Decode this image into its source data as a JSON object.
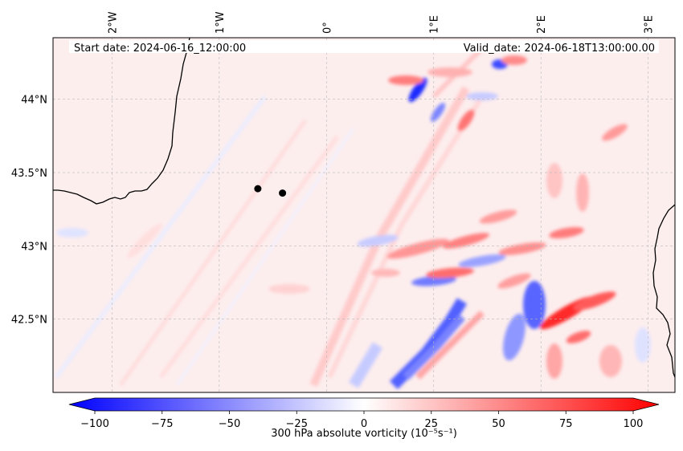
{
  "header": {
    "start_date": "Start date: 2024-06-16_12:00:00",
    "valid_date": "Valid_date: 2024-06-18T13:00:00.00"
  },
  "map": {
    "lon_ticks": [
      {
        "value": -2,
        "label": "2°W"
      },
      {
        "value": -1,
        "label": "1°W"
      },
      {
        "value": 0,
        "label": "0°"
      },
      {
        "value": 1,
        "label": "1°E"
      },
      {
        "value": 2,
        "label": "2°E"
      },
      {
        "value": 3,
        "label": "3°E"
      }
    ],
    "lat_ticks": [
      {
        "value": 44.0,
        "label": "44°N"
      },
      {
        "value": 43.5,
        "label": "43.5°N"
      },
      {
        "value": 43.0,
        "label": "43°N"
      },
      {
        "value": 42.5,
        "label": "42.5°N"
      }
    ],
    "lon_range": [
      -2.55,
      3.25
    ],
    "lat_range": [
      42.0,
      44.42
    ],
    "points": [
      {
        "lon": -0.64,
        "lat": 43.39
      },
      {
        "lon": -0.41,
        "lat": 43.36
      }
    ]
  },
  "colorbar": {
    "label": "300 hPa absolute vorticity (10⁻⁵s⁻¹)",
    "min": -110,
    "max": 110,
    "ticks": [
      -100,
      -75,
      -50,
      -25,
      0,
      25,
      50,
      75,
      100
    ],
    "tick_labels": [
      "−100",
      "−75",
      "−50",
      "−25",
      "0",
      "25",
      "50",
      "75",
      "100"
    ],
    "colormap": "bwr",
    "low_color": "#0000ff",
    "mid_color": "#ffffff",
    "high_color": "#ff0000"
  }
}
